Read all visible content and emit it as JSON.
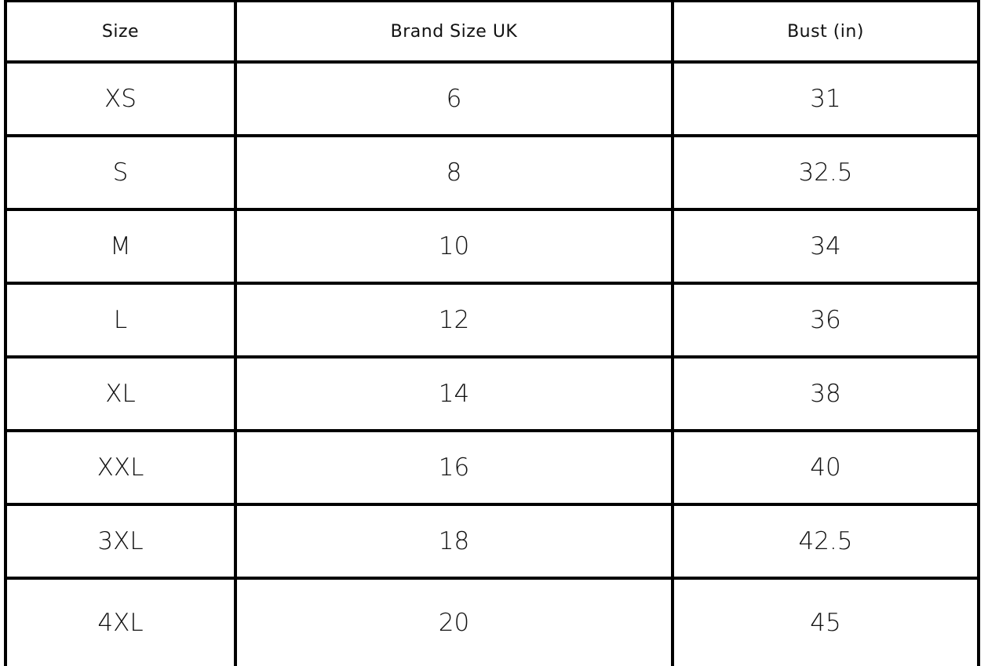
{
  "table": {
    "headers": [
      "Size",
      "Brand Size UK",
      "Bust (in)"
    ],
    "rows": [
      [
        "XS",
        "6",
        "31"
      ],
      [
        "S",
        "8",
        "32.5"
      ],
      [
        "M",
        "10",
        "34"
      ],
      [
        "L",
        "12",
        "36"
      ],
      [
        "XL",
        "14",
        "38"
      ],
      [
        "XXL",
        "16",
        "40"
      ],
      [
        "3XL",
        "18",
        "42.5"
      ],
      [
        "4XL",
        "20",
        "45"
      ]
    ]
  }
}
